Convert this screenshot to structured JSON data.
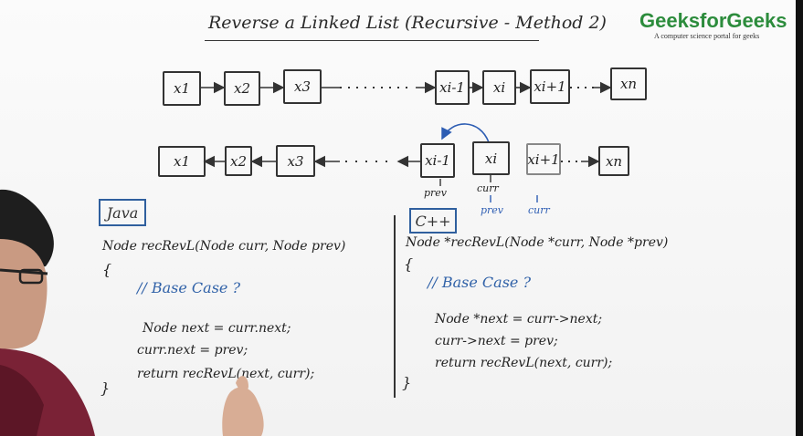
{
  "title": "Reverse a Linked List (Recursive - Method 2)",
  "logo": {
    "name": "GeeksforGeeks",
    "tagline": "A computer science portal for geeks"
  },
  "list_top": [
    "x1",
    "x2",
    "x3",
    "xi-1",
    "xi",
    "xi+1",
    "xn"
  ],
  "list_bottom": [
    "x1",
    "x2",
    "x3",
    "xi-1",
    "xi",
    "xi+1",
    "xn"
  ],
  "pointer_labels": {
    "prev": "prev",
    "curr": "curr",
    "prev_blue": "prev",
    "curr_blue": "curr"
  },
  "java": {
    "label": "Java",
    "signature": "Node recRevL(Node curr, Node prev)",
    "open": "{",
    "comment": "// Base Case ?",
    "lines": [
      "Node next = curr.next;",
      "curr.next = prev;",
      "return recRevL(next, curr);"
    ],
    "close": "}"
  },
  "cpp": {
    "label": "C++",
    "signature": "Node *recRevL(Node *curr, Node *prev)",
    "open": "{",
    "comment": "// Base Case ?",
    "lines": [
      "Node *next = curr->next;",
      "curr->next = prev;",
      "return recRevL(next, curr);"
    ],
    "close": "}"
  },
  "colors": {
    "ink": "#2a2a2a",
    "blue_ink": "#3162a8",
    "logo_green": "#2c8c3c"
  }
}
